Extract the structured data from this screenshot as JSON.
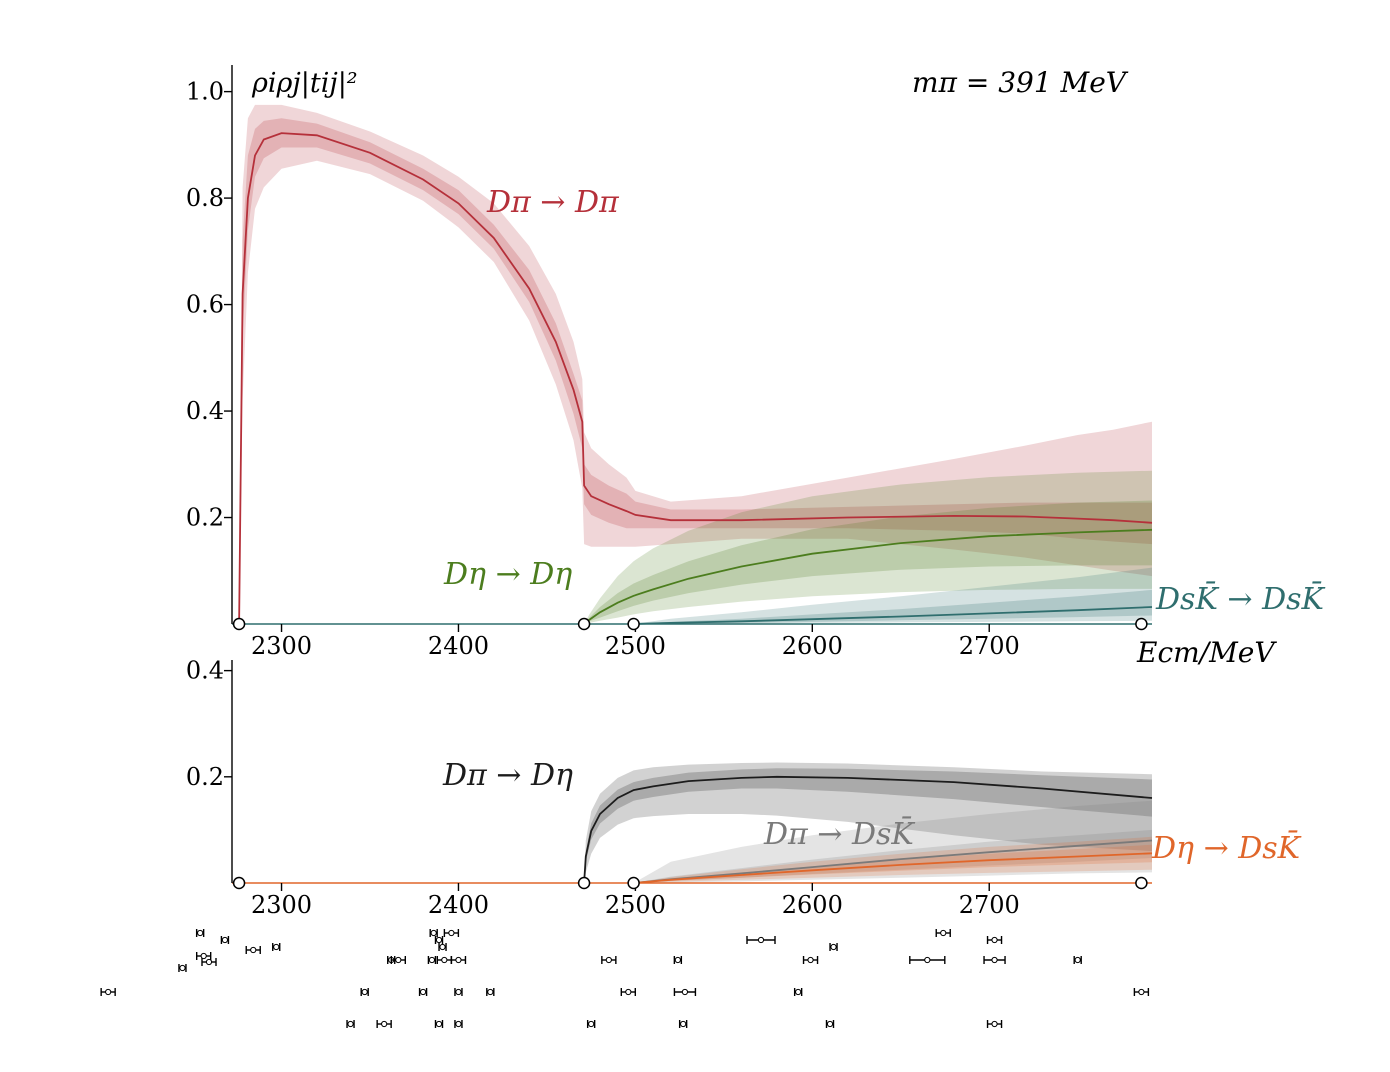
{
  "chart_data": [
    {
      "type": "line",
      "panel": "top",
      "ylabel": "ρiρj|tij|²",
      "annotation": "mπ = 391 MeV",
      "xlabel": "Ecm/MeV",
      "xlim": [
        2272,
        2792
      ],
      "ylim": [
        0,
        1.05
      ],
      "xticks": [
        2300,
        2400,
        2500,
        2600,
        2700
      ],
      "xtick_labels": [
        "2300",
        "2400",
        "2500",
        "2600",
        "2700"
      ],
      "yticks": [
        0.2,
        0.4,
        0.6,
        0.8,
        1.0
      ],
      "ytick_labels": [
        "0.2",
        "0.4",
        "0.6",
        "0.8",
        "1.0"
      ],
      "thresholds": [
        2276,
        2471,
        2499,
        2786
      ],
      "series": [
        {
          "name": "Dπ → Dπ",
          "color": "#b5303a",
          "x": [
            2276,
            2278,
            2281,
            2285,
            2290,
            2300,
            2320,
            2350,
            2380,
            2400,
            2420,
            2440,
            2455,
            2465,
            2470,
            2471,
            2475,
            2485,
            2495,
            2500,
            2520,
            2560,
            2620,
            2680,
            2720,
            2750,
            2770,
            2792
          ],
          "y": [
            0.0,
            0.62,
            0.8,
            0.88,
            0.91,
            0.922,
            0.918,
            0.885,
            0.835,
            0.79,
            0.725,
            0.63,
            0.53,
            0.44,
            0.38,
            0.26,
            0.24,
            0.225,
            0.212,
            0.205,
            0.195,
            0.195,
            0.2,
            0.203,
            0.202,
            0.198,
            0.195,
            0.19
          ],
          "inner_lo": [
            0.0,
            0.54,
            0.74,
            0.84,
            0.875,
            0.895,
            0.895,
            0.865,
            0.815,
            0.77,
            0.705,
            0.605,
            0.495,
            0.395,
            0.33,
            0.225,
            0.205,
            0.19,
            0.18,
            0.18,
            0.18,
            0.18,
            0.18,
            0.175,
            0.17,
            0.16,
            0.155,
            0.15
          ],
          "inner_hi": [
            0.0,
            0.72,
            0.88,
            0.93,
            0.945,
            0.95,
            0.94,
            0.905,
            0.855,
            0.815,
            0.75,
            0.665,
            0.565,
            0.47,
            0.42,
            0.3,
            0.28,
            0.26,
            0.245,
            0.23,
            0.215,
            0.215,
            0.22,
            0.225,
            0.228,
            0.228,
            0.228,
            0.228
          ],
          "outer_lo": [
            0.0,
            0.42,
            0.66,
            0.78,
            0.82,
            0.855,
            0.87,
            0.845,
            0.795,
            0.745,
            0.68,
            0.57,
            0.45,
            0.345,
            0.255,
            0.15,
            0.145,
            0.145,
            0.145,
            0.145,
            0.15,
            0.16,
            0.16,
            0.14,
            0.125,
            0.11,
            0.1,
            0.09
          ],
          "outer_hi": [
            0.0,
            0.82,
            0.95,
            0.975,
            0.975,
            0.975,
            0.96,
            0.925,
            0.88,
            0.84,
            0.79,
            0.71,
            0.62,
            0.53,
            0.46,
            0.36,
            0.33,
            0.3,
            0.275,
            0.25,
            0.23,
            0.24,
            0.275,
            0.31,
            0.335,
            0.355,
            0.365,
            0.38
          ]
        },
        {
          "name": "Dη → Dη",
          "color": "#4c7d1e",
          "x": [
            2471,
            2474,
            2480,
            2490,
            2499,
            2510,
            2530,
            2560,
            2600,
            2650,
            2700,
            2750,
            2792
          ],
          "y": [
            0.0,
            0.008,
            0.022,
            0.04,
            0.053,
            0.065,
            0.085,
            0.108,
            0.132,
            0.152,
            0.165,
            0.172,
            0.177
          ],
          "inner_lo": [
            0.0,
            0.005,
            0.012,
            0.024,
            0.034,
            0.044,
            0.058,
            0.074,
            0.09,
            0.102,
            0.108,
            0.11,
            0.11
          ],
          "inner_hi": [
            0.0,
            0.012,
            0.032,
            0.058,
            0.076,
            0.092,
            0.118,
            0.148,
            0.178,
            0.202,
            0.218,
            0.228,
            0.232
          ],
          "outer_lo": [
            0.0,
            0.002,
            0.006,
            0.012,
            0.018,
            0.024,
            0.032,
            0.042,
            0.052,
            0.06,
            0.064,
            0.066,
            0.066
          ],
          "outer_hi": [
            0.0,
            0.018,
            0.048,
            0.09,
            0.118,
            0.142,
            0.175,
            0.21,
            0.24,
            0.262,
            0.276,
            0.284,
            0.288
          ]
        },
        {
          "name": "DsK̄ → DsK̄",
          "color": "#2f6e6e",
          "x": [
            2499,
            2520,
            2560,
            2600,
            2650,
            2700,
            2750,
            2792
          ],
          "y": [
            0.0,
            0.002,
            0.005,
            0.009,
            0.014,
            0.02,
            0.026,
            0.032
          ],
          "inner_lo": [
            0.0,
            0.001,
            0.002,
            0.004,
            0.007,
            0.01,
            0.013,
            0.016
          ],
          "inner_hi": [
            0.0,
            0.004,
            0.01,
            0.018,
            0.028,
            0.04,
            0.052,
            0.064
          ],
          "outer_lo": [
            0.0,
            0.0,
            0.001,
            0.002,
            0.003,
            0.004,
            0.005,
            0.006
          ],
          "outer_hi": [
            0.0,
            0.01,
            0.022,
            0.036,
            0.052,
            0.07,
            0.088,
            0.106
          ]
        }
      ]
    },
    {
      "type": "line",
      "panel": "bottom",
      "xlim": [
        2272,
        2792
      ],
      "ylim": [
        0,
        0.42
      ],
      "xticks": [
        2300,
        2400,
        2500,
        2600,
        2700
      ],
      "xtick_labels": [
        "2300",
        "2400",
        "2500",
        "2600",
        "2700"
      ],
      "yticks": [
        0.2,
        0.4
      ],
      "ytick_labels": [
        "0.2",
        "0.4"
      ],
      "thresholds": [
        2276,
        2471,
        2499,
        2786
      ],
      "series": [
        {
          "name": "Dπ → Dη",
          "color": "#1c1c1c",
          "x": [
            2471,
            2472,
            2475,
            2480,
            2490,
            2499,
            2510,
            2530,
            2560,
            2580,
            2620,
            2680,
            2730,
            2792
          ],
          "y": [
            0.0,
            0.05,
            0.098,
            0.13,
            0.16,
            0.175,
            0.182,
            0.192,
            0.198,
            0.2,
            0.198,
            0.19,
            0.178,
            0.16
          ],
          "inner_lo": [
            0.0,
            0.04,
            0.082,
            0.112,
            0.14,
            0.155,
            0.162,
            0.172,
            0.178,
            0.178,
            0.172,
            0.158,
            0.143,
            0.125
          ],
          "inner_hi": [
            0.0,
            0.06,
            0.112,
            0.146,
            0.176,
            0.19,
            0.198,
            0.208,
            0.214,
            0.216,
            0.215,
            0.21,
            0.203,
            0.195
          ],
          "outer_lo": [
            0.0,
            0.02,
            0.055,
            0.085,
            0.11,
            0.122,
            0.126,
            0.13,
            0.13,
            0.127,
            0.115,
            0.09,
            0.072,
            0.06
          ],
          "outer_hi": [
            0.0,
            0.08,
            0.135,
            0.168,
            0.198,
            0.212,
            0.218,
            0.223,
            0.226,
            0.227,
            0.225,
            0.218,
            0.21,
            0.205
          ]
        },
        {
          "name": "Dπ → DsK̄",
          "color": "#7a7a7a",
          "x": [
            2499,
            2520,
            2560,
            2600,
            2650,
            2700,
            2750,
            2792
          ],
          "y": [
            0.0,
            0.007,
            0.018,
            0.03,
            0.045,
            0.058,
            0.07,
            0.08
          ],
          "inner_lo": [
            0.0,
            0.004,
            0.01,
            0.017,
            0.025,
            0.033,
            0.04,
            0.047
          ],
          "inner_hi": [
            0.0,
            0.012,
            0.028,
            0.044,
            0.062,
            0.078,
            0.09,
            0.1
          ],
          "outer_lo": [
            0.0,
            0.001,
            0.003,
            0.006,
            0.01,
            0.014,
            0.018,
            0.02
          ],
          "outer_hi": [
            0.0,
            0.04,
            0.068,
            0.09,
            0.112,
            0.13,
            0.145,
            0.155
          ]
        },
        {
          "name": "Dη → DsK̄",
          "color": "#e0662a",
          "x": [
            2499,
            2520,
            2560,
            2600,
            2650,
            2700,
            2750,
            2792
          ],
          "y": [
            0.0,
            0.006,
            0.015,
            0.024,
            0.034,
            0.043,
            0.05,
            0.056
          ],
          "inner_lo": [
            0.0,
            0.004,
            0.01,
            0.016,
            0.023,
            0.03,
            0.035,
            0.039
          ],
          "inner_hi": [
            0.0,
            0.008,
            0.02,
            0.031,
            0.044,
            0.055,
            0.064,
            0.072
          ],
          "outer_lo": [
            0.0,
            0.002,
            0.006,
            0.01,
            0.015,
            0.019,
            0.022,
            0.025
          ],
          "outer_hi": [
            0.0,
            0.011,
            0.026,
            0.04,
            0.055,
            0.068,
            0.078,
            0.087
          ]
        }
      ]
    },
    {
      "type": "scatter",
      "panel": "spectrum",
      "description_units": "energy levels with error bars",
      "rows": [
        {
          "row": 1,
          "levels": [
            [
              2339,
              1
            ],
            [
              2358,
              2
            ],
            [
              2389,
              1
            ],
            [
              2400,
              1
            ],
            [
              2475,
              1
            ],
            [
              2527,
              1
            ],
            [
              2610,
              1
            ],
            [
              2703,
              2
            ]
          ]
        },
        {
          "row": 2,
          "levels": [
            [
              2202,
              2
            ],
            [
              2347,
              1
            ],
            [
              2380,
              1
            ],
            [
              2400,
              1
            ],
            [
              2418,
              1
            ],
            [
              2496,
              2
            ],
            [
              2528,
              3
            ],
            [
              2592,
              1
            ],
            [
              2786,
              2
            ]
          ]
        },
        {
          "row": 3,
          "levels": [
            [
              2244,
              1
            ],
            [
              2259,
              2
            ],
            [
              2256,
              2
            ],
            [
              2284,
              2
            ],
            [
              2362,
              1
            ],
            [
              2366,
              2
            ],
            [
              2385,
              1
            ],
            [
              2392,
              2
            ],
            [
              2400,
              2
            ],
            [
              2485,
              2
            ],
            [
              2524,
              1
            ],
            [
              2599,
              2
            ],
            [
              2665,
              5
            ],
            [
              2703,
              3
            ],
            [
              2750,
              1
            ]
          ]
        },
        {
          "row": 4,
          "levels": [
            [
              2254,
              1
            ],
            [
              2268,
              1
            ],
            [
              2297,
              1
            ],
            [
              2386,
              1
            ],
            [
              2389,
              1
            ],
            [
              2391,
              1
            ],
            [
              2396,
              2
            ],
            [
              2571,
              4
            ],
            [
              2612,
              1
            ],
            [
              2674,
              2
            ],
            [
              2703,
              2
            ]
          ]
        }
      ]
    }
  ],
  "labels": {
    "top_ylabel": "ρiρj|tij|²",
    "mass": "mπ = 391 MeV",
    "xaxis_unit": "Ecm/MeV",
    "dpi_dpi": "Dπ → Dπ",
    "deta_deta": "Dη → Dη",
    "dsk_dsk": "DsK̄ → DsK̄",
    "dpi_deta": "Dπ → Dη",
    "dpi_dsk": "Dπ → DsK̄",
    "deta_dsk": "Dη → DsK̄"
  }
}
